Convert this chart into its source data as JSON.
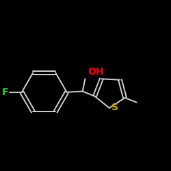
{
  "background_color": "#000000",
  "bond_color": "#d0d0d0",
  "atom_colors": {
    "OH": "#ff0000",
    "F": "#33cc33",
    "S": "#ccaa00"
  },
  "font_size_atoms": 9,
  "figsize": [
    2.5,
    2.5
  ],
  "dpi": 100
}
